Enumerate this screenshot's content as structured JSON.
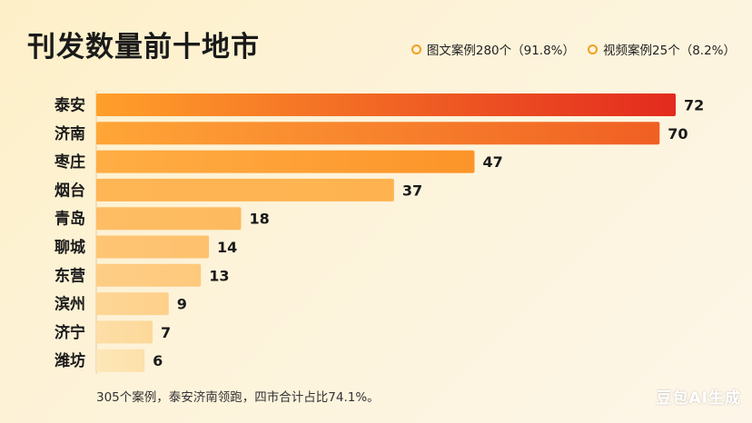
{
  "title": "刊发数量前十地市",
  "legend": {
    "items": [
      {
        "label": "图文案例280个（91.8%）",
        "color": "#f0a020"
      },
      {
        "label": "视频案例25个（8.2%）",
        "color": "#f0a020"
      }
    ]
  },
  "chart_data": {
    "type": "bar",
    "orientation": "horizontal",
    "title": "刊发数量前十地市",
    "categories": [
      "泰安",
      "济南",
      "枣庄",
      "烟台",
      "青岛",
      "聊城",
      "东营",
      "滨州",
      "济宁",
      "潍坊"
    ],
    "values": [
      72,
      70,
      47,
      37,
      18,
      14,
      13,
      9,
      7,
      6
    ],
    "xlabel": "",
    "ylabel": "",
    "grid": false,
    "legend_position": "top-right",
    "colors": {
      "start": "#ffa02a",
      "end": "#e32a1e",
      "light": "#fde7b8"
    }
  },
  "footnote": "305个案例，泰安济南领跑，四市合计占比74.1%。",
  "watermark": "豆包AI生成"
}
